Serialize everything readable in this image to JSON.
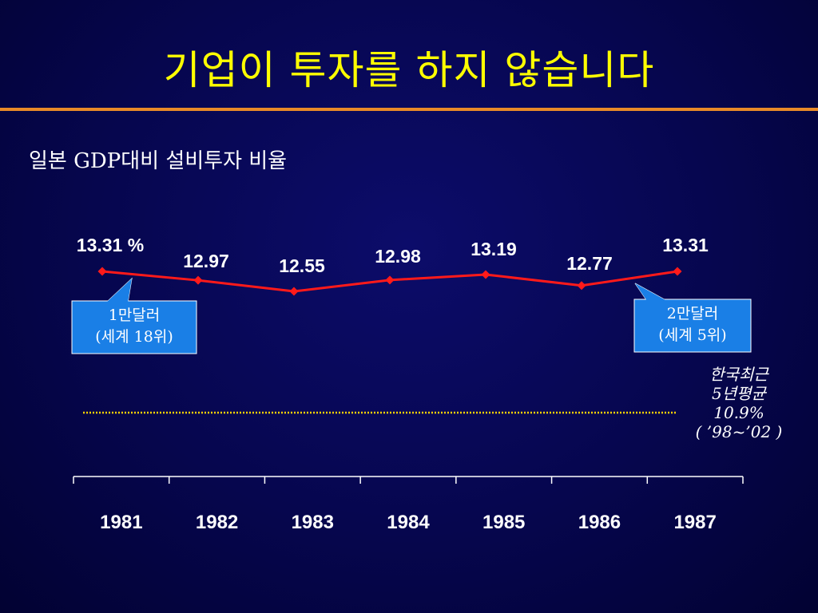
{
  "slide": {
    "title": "기업이 투자를 하지 않습니다",
    "subtitle": "일본 GDP대비 설비투자 비율"
  },
  "chart_data": {
    "type": "line",
    "title": "",
    "xlabel": "",
    "ylabel": "",
    "x": [
      "1981",
      "1982",
      "1983",
      "1984",
      "1985",
      "1986",
      "1987"
    ],
    "series": [
      {
        "values": [
          13.31,
          12.97,
          12.55,
          12.98,
          13.19,
          12.77,
          13.31
        ],
        "labels": [
          "13.31 %",
          "12.97",
          "12.55",
          "12.98",
          "13.19",
          "12.77",
          "13.31"
        ],
        "color": "#ff1a1a"
      }
    ],
    "reference_line": {
      "value": 10.9,
      "color": "#ffd200",
      "style": "dotted"
    },
    "callouts": [
      {
        "x": "1981",
        "lines": [
          "1만달러",
          "(세계 18위)"
        ],
        "fill": "#1a7fe6"
      },
      {
        "x": "1987",
        "lines": [
          "2만달러",
          "(세계 5위)"
        ],
        "fill": "#1a7fe6"
      }
    ],
    "note_lines": [
      "한국최근",
      "5년평균",
      "10.9%",
      "( ’98~’02 )"
    ],
    "grid": false,
    "legend": "none"
  }
}
